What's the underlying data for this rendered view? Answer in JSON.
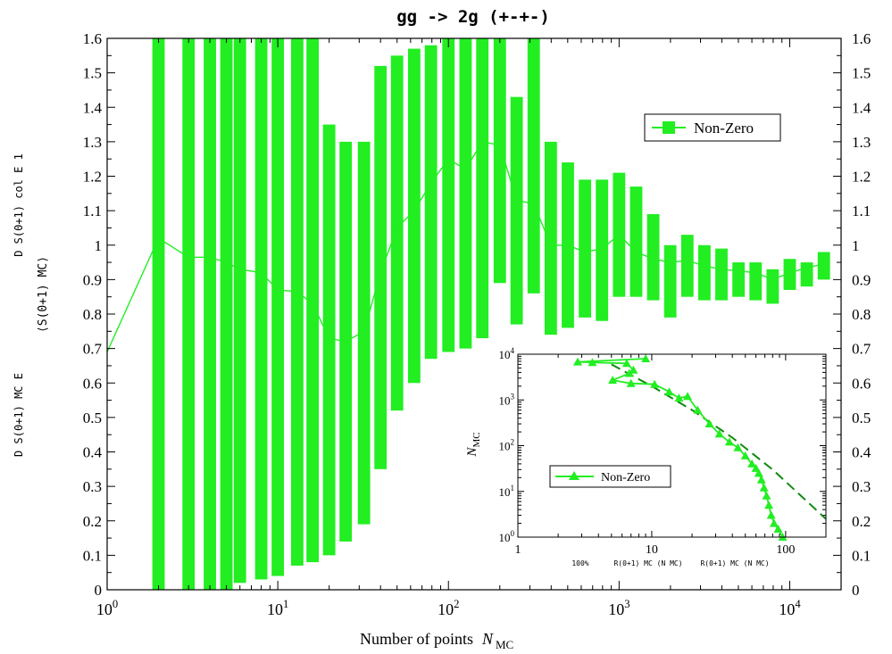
{
  "colors": {
    "series": "#22ee22",
    "dark": "#108a10",
    "axis": "#000000"
  },
  "chart_data": [
    {
      "type": "bar",
      "title": "gg -> 2g (+-+-)",
      "xlabel": "Number of points",
      "xlabel_symbol": "N",
      "xlabel_subscript": "MC",
      "ylabel_parts": [
        {
          "name": "ylabel-ratio-top",
          "text": "D   S(0+1) col  E 1"
        },
        {
          "name": "ylabel-average",
          "text": "⟨S(0+1) MC⟩"
        },
        {
          "name": "ylabel-ratio-bottom",
          "text": "D   S(0+1) MC  E"
        }
      ],
      "xscale": "log",
      "xlim": [
        1,
        20000
      ],
      "ylim": [
        0,
        1.6
      ],
      "x_tick_labels": [
        "10^0",
        "10^1",
        "10^2",
        "10^3",
        "10^4"
      ],
      "y_tick_labels": [
        "0",
        "0.1",
        "0.2",
        "0.3",
        "0.4",
        "0.5",
        "0.6",
        "0.7",
        "0.8",
        "0.9",
        "1",
        "1.1",
        "1.2",
        "1.3",
        "1.4",
        "1.5",
        "1.6"
      ],
      "grid": false,
      "legend": {
        "position": "top-right",
        "entries": [
          "Non-Zero"
        ]
      },
      "series": [
        {
          "name": "Non-Zero",
          "x": [
            2,
            3,
            4,
            5,
            6,
            8,
            10,
            13,
            16,
            20,
            25,
            32,
            40,
            50,
            63,
            79,
            100,
            126,
            158,
            200,
            251,
            316,
            398,
            501,
            631,
            794,
            1000,
            1259,
            1585,
            1995,
            2512,
            3162,
            3981,
            5012,
            6310,
            7943,
            10000,
            12589,
            15849
          ],
          "mean": [
            1.02,
            0.965,
            0.965,
            0.95,
            0.93,
            0.92,
            0.87,
            0.865,
            0.83,
            0.73,
            0.72,
            0.75,
            0.92,
            1.05,
            1.1,
            1.18,
            1.25,
            1.22,
            1.3,
            1.29,
            1.13,
            1.12,
            1.0,
            1.0,
            0.98,
            0.99,
            1.03,
            0.98,
            0.96,
            0.95,
            0.955,
            0.94,
            0.93,
            0.925,
            0.92,
            0.9,
            0.92,
            0.935,
            0.945
          ],
          "low": [
            0.0,
            0.0,
            0.0,
            0.0,
            0.02,
            0.03,
            0.04,
            0.07,
            0.08,
            0.1,
            0.14,
            0.19,
            0.35,
            0.52,
            0.6,
            0.67,
            0.69,
            0.7,
            0.73,
            0.89,
            0.77,
            0.86,
            0.74,
            0.76,
            0.79,
            0.78,
            0.85,
            0.85,
            0.84,
            0.79,
            0.85,
            0.84,
            0.84,
            0.85,
            0.84,
            0.83,
            0.87,
            0.88,
            0.9
          ],
          "high": [
            1.6,
            1.6,
            1.6,
            1.6,
            1.6,
            1.6,
            1.6,
            1.6,
            1.6,
            1.35,
            1.3,
            1.3,
            1.52,
            1.55,
            1.57,
            1.58,
            1.6,
            1.6,
            1.6,
            1.6,
            1.43,
            1.6,
            1.3,
            1.24,
            1.19,
            1.19,
            1.21,
            1.17,
            1.09,
            1.0,
            1.03,
            1.0,
            0.99,
            0.95,
            0.95,
            0.93,
            0.96,
            0.95,
            0.98
          ]
        }
      ]
    },
    {
      "type": "line",
      "title": "",
      "xlabel_parts": [
        "100%",
        "R(0+1) MC (N MC)",
        "R(0+1) MC (N MC)"
      ],
      "ylabel": "N",
      "ylabel_subscript": "MC",
      "xscale": "log",
      "yscale": "log",
      "xlim": [
        1,
        200
      ],
      "ylim": [
        1,
        10000
      ],
      "x_tick_labels": [
        "1",
        "10",
        "100"
      ],
      "y_tick_labels": [
        "10^0",
        "10^1",
        "10^2",
        "10^3",
        "10^4"
      ],
      "grid": false,
      "legend": {
        "position": "left",
        "entries": [
          "Non-Zero"
        ]
      },
      "series": [
        {
          "name": "Non-Zero",
          "points": [
            [
              9,
              8000
            ],
            [
              2.8,
              6800
            ],
            [
              3.6,
              6600
            ],
            [
              6.5,
              6300
            ],
            [
              7.3,
              4500
            ],
            [
              6.8,
              3800
            ],
            [
              5.1,
              2700
            ],
            [
              7,
              2300
            ],
            [
              10.5,
              2200
            ],
            [
              13.5,
              1500
            ],
            [
              16,
              1100
            ],
            [
              18.5,
              1200
            ],
            [
              22,
              600
            ],
            [
              27,
              300
            ],
            [
              32,
              180
            ],
            [
              38,
              120
            ],
            [
              44,
              90
            ],
            [
              50,
              60
            ],
            [
              56,
              40
            ],
            [
              60,
              32
            ],
            [
              63,
              25
            ],
            [
              66,
              18
            ],
            [
              69,
              12
            ],
            [
              72,
              8
            ],
            [
              75,
              5
            ],
            [
              78,
              3
            ],
            [
              82,
              2
            ],
            [
              88,
              1.5
            ],
            [
              95,
              1
            ]
          ]
        },
        {
          "name": "",
          "style": "dashed",
          "points": [
            [
              5,
              6000
            ],
            [
              10,
              2000
            ],
            [
              20,
              600
            ],
            [
              40,
              150
            ],
            [
              80,
              30
            ],
            [
              200,
              2.5
            ]
          ]
        }
      ]
    }
  ]
}
